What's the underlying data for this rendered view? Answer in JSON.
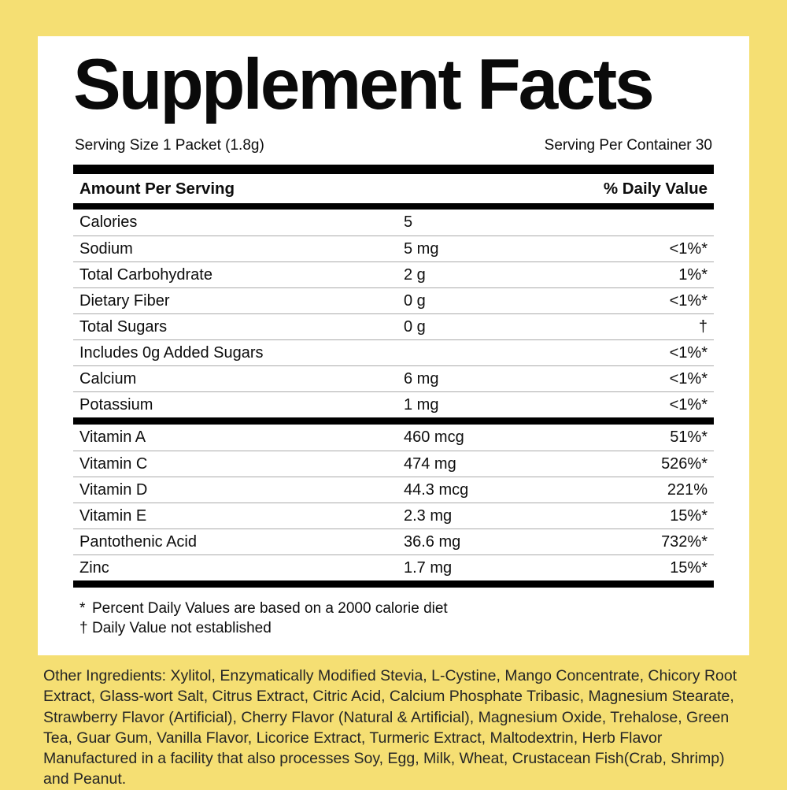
{
  "colors": {
    "background": "#F5DF73",
    "card": "#FFFFFF",
    "text": "#0D0D0D",
    "divider": "#AAAAAA"
  },
  "title": "Supplement Facts",
  "serving": {
    "size": "Serving Size 1 Packet (1.8g)",
    "per_container": "Serving Per Container 30"
  },
  "table": {
    "header": {
      "left": "Amount Per Serving",
      "right": "% Daily Value"
    },
    "rows": [
      {
        "name": "Calories",
        "amount": "5",
        "dv": ""
      },
      {
        "name": "Sodium",
        "amount": "5 mg",
        "dv": "<1%*"
      },
      {
        "name": "Total Carbohydrate",
        "amount": "2 g",
        "dv": "1%*"
      },
      {
        "name": "Dietary Fiber",
        "amount": "0 g",
        "dv": "<1%*"
      },
      {
        "name": "Total Sugars",
        "amount": "0 g",
        "dv": "†"
      },
      {
        "name": "Includes 0g Added Sugars",
        "amount": "",
        "dv": "<1%*"
      },
      {
        "name": "Calcium",
        "amount": "6 mg",
        "dv": "<1%*"
      },
      {
        "name": "Potassium",
        "amount": "1 mg",
        "dv": "<1%*"
      }
    ],
    "vitamin_rows": [
      {
        "name": "Vitamin A",
        "amount": "460 mcg",
        "dv": "51%*"
      },
      {
        "name": "Vitamin C",
        "amount": "474 mg",
        "dv": "526%*"
      },
      {
        "name": "Vitamin D",
        "amount": "44.3 mcg",
        "dv": "221%"
      },
      {
        "name": "Vitamin E",
        "amount": "2.3 mg",
        "dv": "15%*"
      },
      {
        "name": "Pantothenic Acid",
        "amount": "36.6 mg",
        "dv": "732%*"
      },
      {
        "name": "Zinc",
        "amount": "1.7 mg",
        "dv": "15%*"
      }
    ]
  },
  "footnotes": [
    {
      "mark": "*",
      "text": "Percent Daily Values are based on a 2000 calorie diet"
    },
    {
      "mark": "†",
      "text": "Daily Value not established"
    }
  ],
  "other_ingredients": "Other Ingredients: Xylitol, Enzymatically Modified Stevia, L-Cystine, Mango Concentrate, Chicory Root Extract, Glass-wort Salt, Citrus Extract, Citric Acid, Calcium Phosphate Tribasic, Magnesium Stearate, Strawberry Flavor (Artificial), Cherry Flavor (Natural & Artificial), Magnesium Oxide, Trehalose, Green Tea, Guar Gum, Vanilla Flavor, Licorice Extract, Turmeric Extract, Maltodextrin, Herb Flavor",
  "manufactured": "Manufactured in a facility that also processes Soy, Egg, Milk, Wheat, Crustacean Fish(Crab, Shrimp) and Peanut."
}
